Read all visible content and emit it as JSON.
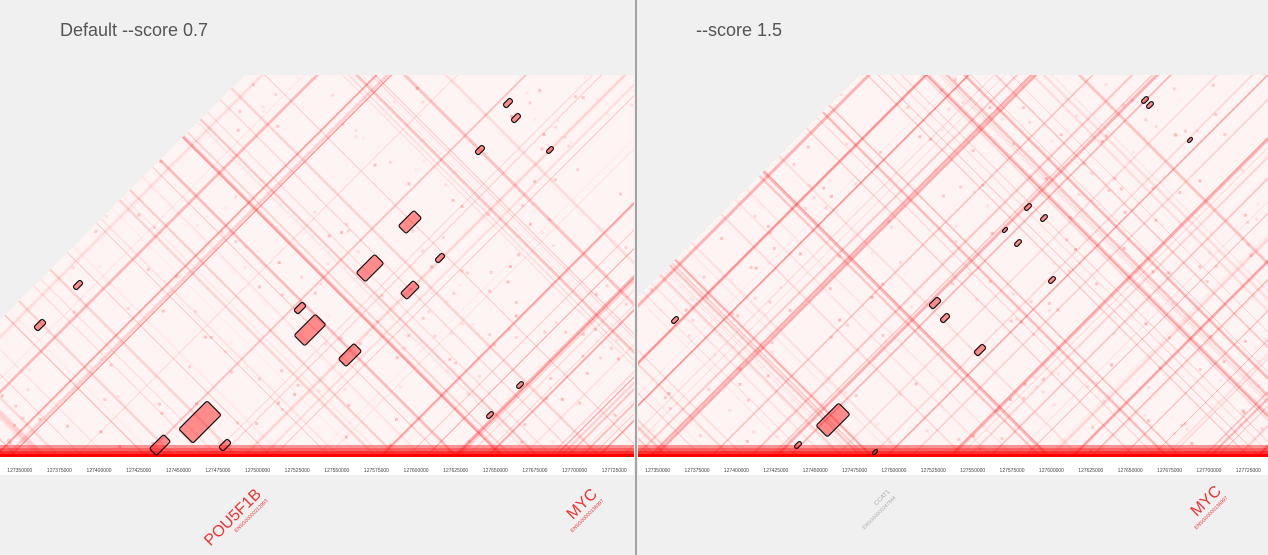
{
  "panels": [
    {
      "title": "Default --score 0.7",
      "ticks": [
        "127350000",
        "127375000",
        "127400000",
        "127425000",
        "127450000",
        "127475000",
        "127500000",
        "127525000",
        "127550000",
        "127575000",
        "127600000",
        "127625000",
        "127650000",
        "127675000",
        "127700000",
        "127725000"
      ],
      "genes": [
        {
          "label": "POU5F1B",
          "sub": "ENSG00000212993",
          "color": "#e33"
        },
        {
          "label": "MYC",
          "sub": "ENSG00000136997",
          "color": "#e33"
        }
      ]
    },
    {
      "title": "--score 1.5",
      "ticks": [
        "127350000",
        "127375000",
        "127400000",
        "127425000",
        "127450000",
        "127475000",
        "127500000",
        "127525000",
        "127550000",
        "127575000",
        "127600000",
        "127625000",
        "127650000",
        "127675000",
        "127700000",
        "127725000"
      ],
      "genes": [
        {
          "label": "CCAT1",
          "sub": "ENSG00000247844",
          "color": "#aaa"
        },
        {
          "label": "MYC",
          "sub": "ENSG00000136997",
          "color": "#e33"
        }
      ]
    }
  ]
}
